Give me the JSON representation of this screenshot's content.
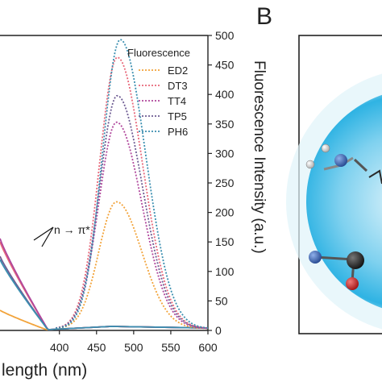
{
  "panel_b_letter": "B",
  "chart_data": {
    "type": "line",
    "xlabel_visible": "length (nm)",
    "ylabel_right": "Fluorescence Intensity (a.u.)",
    "xlim": [
      320,
      600
    ],
    "ylim_right": [
      0,
      500
    ],
    "x_ticks": [
      "400",
      "450",
      "500",
      "550",
      "600"
    ],
    "x_tick_values": [
      400,
      450,
      500,
      550,
      600
    ],
    "y_ticks": [
      "0",
      "50",
      "100",
      "150",
      "200",
      "250",
      "300",
      "350",
      "400",
      "450",
      "500"
    ],
    "y_tick_values": [
      0,
      50,
      100,
      150,
      200,
      250,
      300,
      350,
      400,
      450,
      500
    ],
    "legend_title": "Fluorescence",
    "legend_position": "top-right",
    "annotation": "n → π*",
    "series": [
      {
        "name": "ED2",
        "color": "#f2a33a",
        "peak_x": 477,
        "peak_y": 215
      },
      {
        "name": "DT3",
        "color": "#e8687a",
        "peak_x": 478,
        "peak_y": 460
      },
      {
        "name": "TT4",
        "color": "#b0479c",
        "peak_x": 477,
        "peak_y": 350
      },
      {
        "name": "TP5",
        "color": "#6e5c93",
        "peak_x": 478,
        "peak_y": 395
      },
      {
        "name": "PH6",
        "color": "#3b8fb0",
        "peak_x": 482,
        "peak_y": 490
      }
    ],
    "absorbance_colors": [
      "#f2a33a",
      "#e8687a",
      "#b0479c",
      "#6e5c93",
      "#3b8fb0"
    ]
  }
}
